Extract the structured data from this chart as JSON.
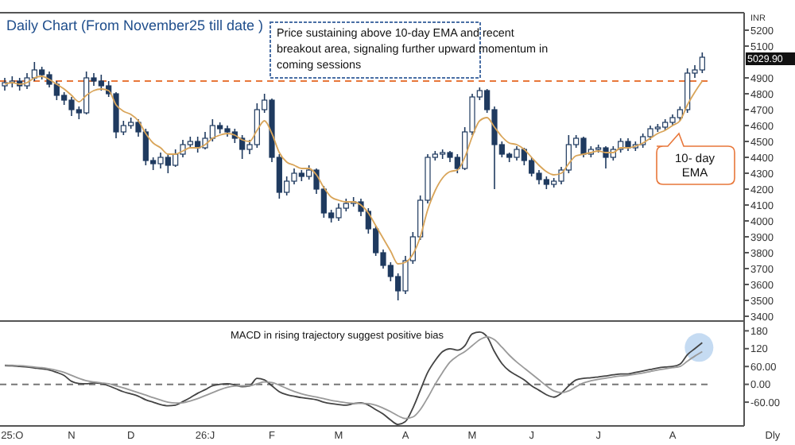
{
  "chart_data": [
    {
      "type": "candlestick",
      "title": "Daily Chart (From November25 till date )",
      "ylabel": "INR",
      "color": "#1f3a5f",
      "categories": [
        null,
        null,
        null,
        null,
        null,
        null,
        null,
        null,
        null,
        null,
        null,
        null,
        null,
        null,
        null,
        null,
        null,
        null,
        null,
        null,
        null,
        null,
        null,
        null,
        null,
        null,
        null,
        null,
        null,
        null,
        null,
        null,
        null,
        null,
        null,
        null,
        null,
        null,
        null,
        null,
        null,
        null,
        null,
        null,
        null,
        null,
        null,
        null,
        null,
        null,
        null,
        null,
        null,
        null,
        null,
        null,
        null,
        null,
        null,
        null,
        null,
        null,
        null,
        null,
        null,
        null,
        null,
        null,
        null,
        null,
        null,
        null,
        null,
        null,
        null,
        null,
        null,
        null,
        null,
        null,
        null,
        null,
        null,
        null,
        null,
        null,
        null,
        null,
        null,
        null,
        null,
        null,
        null,
        null,
        null,
        null,
        null,
        null,
        null,
        null
      ],
      "ohlc": [
        [
          4850,
          4900,
          4820,
          4870
        ],
        [
          4870,
          4910,
          4840,
          4880
        ],
        [
          4880,
          4900,
          4820,
          4850
        ],
        [
          4850,
          4930,
          4830,
          4900
        ],
        [
          4900,
          5000,
          4880,
          4950
        ],
        [
          4950,
          4970,
          4890,
          4920
        ],
        [
          4920,
          4940,
          4840,
          4860
        ],
        [
          4860,
          4880,
          4760,
          4790
        ],
        [
          4790,
          4810,
          4730,
          4760
        ],
        [
          4760,
          4780,
          4660,
          4700
        ],
        [
          4700,
          4720,
          4640,
          4680
        ],
        [
          4680,
          4940,
          4670,
          4900
        ],
        [
          4900,
          4930,
          4850,
          4880
        ],
        [
          4880,
          4920,
          4820,
          4850
        ],
        [
          4850,
          4880,
          4780,
          4800
        ],
        [
          4800,
          4810,
          4520,
          4560
        ],
        [
          4560,
          4630,
          4540,
          4600
        ],
        [
          4600,
          4650,
          4580,
          4620
        ],
        [
          4620,
          4640,
          4530,
          4560
        ],
        [
          4560,
          4580,
          4350,
          4380
        ],
        [
          4380,
          4400,
          4320,
          4360
        ],
        [
          4360,
          4430,
          4330,
          4400
        ],
        [
          4400,
          4420,
          4300,
          4350
        ],
        [
          4350,
          4450,
          4340,
          4420
        ],
        [
          4420,
          4510,
          4400,
          4480
        ],
        [
          4480,
          4530,
          4460,
          4500
        ],
        [
          4500,
          4530,
          4430,
          4460
        ],
        [
          4460,
          4560,
          4450,
          4520
        ],
        [
          4520,
          4640,
          4500,
          4600
        ],
        [
          4600,
          4620,
          4550,
          4580
        ],
        [
          4580,
          4600,
          4530,
          4560
        ],
        [
          4560,
          4580,
          4490,
          4520
        ],
        [
          4520,
          4540,
          4390,
          4450
        ],
        [
          4450,
          4510,
          4420,
          4480
        ],
        [
          4480,
          4740,
          4460,
          4700
        ],
        [
          4700,
          4800,
          4680,
          4760
        ],
        [
          4760,
          4770,
          4370,
          4400
        ],
        [
          4400,
          4420,
          4140,
          4180
        ],
        [
          4180,
          4280,
          4160,
          4250
        ],
        [
          4250,
          4330,
          4230,
          4300
        ],
        [
          4300,
          4320,
          4250,
          4280
        ],
        [
          4280,
          4350,
          4260,
          4320
        ],
        [
          4320,
          4330,
          4170,
          4200
        ],
        [
          4200,
          4220,
          4020,
          4050
        ],
        [
          4050,
          4070,
          3990,
          4020
        ],
        [
          4020,
          4110,
          4000,
          4080
        ],
        [
          4080,
          4140,
          4060,
          4110
        ],
        [
          4110,
          4150,
          4090,
          4120
        ],
        [
          4120,
          4140,
          4030,
          4060
        ],
        [
          4060,
          4080,
          3920,
          3950
        ],
        [
          3950,
          3970,
          3780,
          3800
        ],
        [
          3800,
          3820,
          3700,
          3720
        ],
        [
          3720,
          3740,
          3620,
          3650
        ],
        [
          3650,
          3670,
          3500,
          3560
        ],
        [
          3560,
          3780,
          3540,
          3750
        ],
        [
          3750,
          3930,
          3730,
          3900
        ],
        [
          3900,
          4160,
          3880,
          4130
        ],
        [
          4130,
          4420,
          4110,
          4400
        ],
        [
          4400,
          4440,
          4380,
          4420
        ],
        [
          4420,
          4450,
          4390,
          4430
        ],
        [
          4430,
          4440,
          4370,
          4400
        ],
        [
          4400,
          4420,
          4300,
          4330
        ],
        [
          4330,
          4590,
          4320,
          4560
        ],
        [
          4560,
          4800,
          4540,
          4780
        ],
        [
          4780,
          4840,
          4760,
          4820
        ],
        [
          4820,
          4830,
          4680,
          4700
        ],
        [
          4700,
          4720,
          4200,
          4480
        ],
        [
          4480,
          4500,
          4400,
          4420
        ],
        [
          4420,
          4430,
          4370,
          4400
        ],
        [
          4400,
          4470,
          4380,
          4450
        ],
        [
          4450,
          4460,
          4350,
          4380
        ],
        [
          4380,
          4400,
          4280,
          4300
        ],
        [
          4300,
          4320,
          4230,
          4260
        ],
        [
          4260,
          4280,
          4200,
          4230
        ],
        [
          4230,
          4270,
          4210,
          4250
        ],
        [
          4250,
          4340,
          4230,
          4320
        ],
        [
          4320,
          4540,
          4300,
          4480
        ],
        [
          4480,
          4540,
          4460,
          4520
        ],
        [
          4520,
          4530,
          4400,
          4420
        ],
        [
          4420,
          4470,
          4400,
          4450
        ],
        [
          4450,
          4480,
          4430,
          4460
        ],
        [
          4460,
          4470,
          4330,
          4400
        ],
        [
          4400,
          4470,
          4380,
          4450
        ],
        [
          4450,
          4520,
          4430,
          4500
        ],
        [
          4500,
          4520,
          4440,
          4460
        ],
        [
          4460,
          4500,
          4440,
          4480
        ],
        [
          4480,
          4550,
          4460,
          4530
        ],
        [
          4530,
          4600,
          4510,
          4580
        ],
        [
          4580,
          4610,
          4560,
          4590
        ],
        [
          4590,
          4640,
          4570,
          4620
        ],
        [
          4620,
          4670,
          4600,
          4650
        ],
        [
          4650,
          4720,
          4630,
          4700
        ],
        [
          4700,
          4960,
          4680,
          4930
        ],
        [
          4930,
          4980,
          4900,
          4950
        ],
        [
          4950,
          5060,
          4930,
          5029.9
        ],
        null,
        null,
        null,
        null,
        null
      ],
      "series": [
        {
          "type": "line",
          "color": "#d9a55a",
          "values": [
            4860,
            4870,
            4860,
            4870,
            4900,
            4910,
            4890,
            4860,
            4830,
            4790,
            4750,
            4790,
            4820,
            4830,
            4820,
            4730,
            4690,
            4670,
            4630,
            4550,
            4490,
            4460,
            4420,
            4420,
            4440,
            4460,
            4460,
            4480,
            4520,
            4540,
            4550,
            4540,
            4510,
            4500,
            4570,
            4630,
            4550,
            4430,
            4370,
            4350,
            4330,
            4330,
            4290,
            4210,
            4150,
            4130,
            4120,
            4120,
            4100,
            4050,
            3970,
            3890,
            3810,
            3730,
            3740,
            3790,
            3900,
            4070,
            4190,
            4270,
            4310,
            4320,
            4400,
            4530,
            4630,
            4650,
            4590,
            4530,
            4490,
            4480,
            4450,
            4400,
            4350,
            4310,
            4290,
            4300,
            4360,
            4410,
            4420,
            4430,
            4440,
            4430,
            4430,
            4460,
            4460,
            4470,
            4490,
            4520,
            4550,
            4570,
            4600,
            4630,
            4730,
            4810,
            4880,
            null,
            null,
            null,
            null,
            null
          ]
        }
      ],
      "ylim": [
        3370,
        5310
      ],
      "yticks": [
        3400,
        3500,
        3600,
        3700,
        3800,
        3900,
        4000,
        4100,
        4200,
        4300,
        4400,
        4500,
        4600,
        4700,
        4800,
        4900,
        5100,
        5200
      ],
      "tick_labels": "y",
      "grid": false,
      "ref_lines": [
        {
          "axis": "y",
          "value": 4880,
          "color": "#e8773a",
          "line_style": "dashed"
        }
      ],
      "annotations": [
        "Price sustaining above 10-day EMA and recent breakout area, signaling further upward momentum in coming sessions",
        "10- day EMA",
        "5029.90"
      ]
    },
    {
      "type": "line",
      "categories": [
        null,
        "25:O",
        null,
        null,
        null,
        null,
        null,
        null,
        null,
        "N",
        null,
        null,
        null,
        null,
        null,
        null,
        null,
        "D",
        null,
        null,
        null,
        null,
        null,
        null,
        null,
        null,
        null,
        "26:J",
        null,
        null,
        null,
        null,
        null,
        null,
        null,
        null,
        "F",
        null,
        null,
        null,
        null,
        null,
        null,
        null,
        null,
        "M",
        null,
        null,
        null,
        null,
        null,
        null,
        null,
        null,
        "A",
        null,
        null,
        null,
        null,
        null,
        null,
        null,
        null,
        "M",
        null,
        null,
        null,
        null,
        null,
        null,
        null,
        "J",
        null,
        null,
        null,
        null,
        null,
        null,
        null,
        null,
        "J",
        null,
        null,
        null,
        null,
        null,
        null,
        null,
        null,
        null,
        "A",
        null,
        null,
        null,
        null,
        null,
        null,
        null,
        null,
        null
      ],
      "series": [
        {
          "color": "#444444",
          "values": [
            63,
            62,
            60,
            58,
            55,
            52,
            48,
            40,
            30,
            10,
            3,
            2,
            5,
            3,
            -5,
            -15,
            -25,
            -32,
            -40,
            -52,
            -60,
            -68,
            -72,
            -70,
            -58,
            -45,
            -30,
            -18,
            -5,
            0,
            2,
            -2,
            -8,
            -5,
            20,
            15,
            -5,
            -25,
            -35,
            -40,
            -45,
            -48,
            -52,
            -60,
            -65,
            -68,
            -70,
            -65,
            -62,
            -70,
            -85,
            -100,
            -120,
            -135,
            -125,
            -80,
            -20,
            40,
            80,
            110,
            120,
            115,
            130,
            170,
            176,
            160,
            110,
            70,
            45,
            30,
            15,
            -5,
            -20,
            -35,
            -43,
            -30,
            -5,
            15,
            20,
            22,
            25,
            28,
            32,
            35,
            35,
            40,
            45,
            50,
            55,
            58,
            60,
            68,
            100,
            120,
            140,
            null,
            null,
            null,
            null,
            null
          ]
        },
        {
          "color": "#9a9a9a",
          "values": [
            65,
            64,
            63,
            61,
            58,
            56,
            52,
            47,
            40,
            30,
            20,
            12,
            8,
            5,
            2,
            -5,
            -12,
            -20,
            -28,
            -36,
            -45,
            -53,
            -60,
            -63,
            -62,
            -56,
            -48,
            -38,
            -28,
            -18,
            -10,
            -6,
            -5,
            -5,
            2,
            8,
            6,
            -3,
            -14,
            -24,
            -32,
            -38,
            -43,
            -48,
            -54,
            -58,
            -62,
            -64,
            -64,
            -65,
            -70,
            -80,
            -92,
            -106,
            -115,
            -110,
            -85,
            -45,
            0,
            40,
            75,
            95,
            110,
            130,
            150,
            160,
            150,
            125,
            98,
            75,
            55,
            35,
            15,
            -5,
            -22,
            -28,
            -22,
            -8,
            5,
            12,
            17,
            21,
            25,
            28,
            30,
            34,
            38,
            43,
            48,
            52,
            56,
            60,
            78,
            95,
            110,
            null,
            null,
            null,
            null,
            null
          ]
        }
      ],
      "ylim": [
        -140,
        213
      ],
      "yticks": [
        {
          "value": -60,
          "label": "-60.00"
        },
        {
          "value": 0,
          "label": "0.00"
        },
        {
          "value": 60,
          "label": "60.00"
        },
        120,
        180
      ],
      "grid": false,
      "ref_lines": [
        {
          "axis": "y",
          "value": 0,
          "color": "#777777",
          "line_style": "dashed"
        }
      ],
      "annotations": [
        "MACD in rising trajectory suggest positive bias",
        "Dly"
      ]
    }
  ]
}
